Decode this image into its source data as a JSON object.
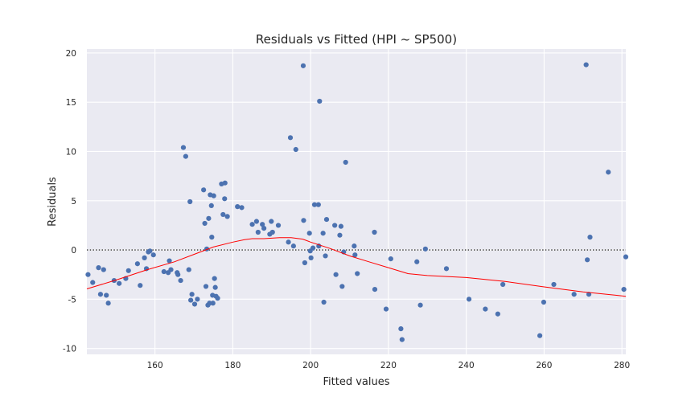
{
  "chart_data": {
    "type": "scatter",
    "title": "Residuals vs Fitted (HPI ~ SP500)",
    "xlabel": "Fitted values",
    "ylabel": "Residuals",
    "xlim": [
      142.5,
      281
    ],
    "ylim": [
      -10.6,
      20.4
    ],
    "x_ticks": [
      160,
      180,
      200,
      220,
      240,
      260,
      280
    ],
    "y_ticks": [
      -10,
      -5,
      0,
      5,
      10,
      15,
      20
    ],
    "grid": true,
    "background": "#eaeaf2",
    "point_color": "#4c72b0",
    "lowess_color": "#ff0000",
    "zero_line_color": "#333333",
    "points": [
      [
        142.8,
        -2.5
      ],
      [
        144,
        -3.3
      ],
      [
        145.5,
        -1.8
      ],
      [
        146,
        -4.5
      ],
      [
        146.8,
        -2
      ],
      [
        147.5,
        -4.6
      ],
      [
        148,
        -5.4
      ],
      [
        149.5,
        -3.1
      ],
      [
        150.8,
        -3.4
      ],
      [
        152.5,
        -2.9
      ],
      [
        153.2,
        -2.1
      ],
      [
        155.5,
        -1.4
      ],
      [
        156.2,
        -3.6
      ],
      [
        157.3,
        -0.8
      ],
      [
        157.8,
        -1.9
      ],
      [
        158.3,
        -0.2
      ],
      [
        158.7,
        -0.1
      ],
      [
        159.6,
        -0.5
      ],
      [
        162.3,
        -2.2
      ],
      [
        163.4,
        -2.3
      ],
      [
        163.7,
        -1.1
      ],
      [
        164.1,
        -2
      ],
      [
        165.7,
        -2.3
      ],
      [
        165.9,
        -2.5
      ],
      [
        166.6,
        -3.1
      ],
      [
        167.3,
        10.4
      ],
      [
        167.9,
        9.5
      ],
      [
        168.7,
        -2
      ],
      [
        169,
        4.9
      ],
      [
        169.2,
        -5.1
      ],
      [
        169.5,
        -4.5
      ],
      [
        170.2,
        -5.5
      ],
      [
        170.9,
        -5
      ],
      [
        172.5,
        6.1
      ],
      [
        172.8,
        2.7
      ],
      [
        173.1,
        -3.7
      ],
      [
        173.3,
        0.1
      ],
      [
        173.6,
        -5.6
      ],
      [
        173.8,
        3.2
      ],
      [
        174,
        -5.4
      ],
      [
        174.2,
        5.6
      ],
      [
        174.5,
        4.5
      ],
      [
        174.6,
        1.3
      ],
      [
        174.8,
        -4.6
      ],
      [
        174.9,
        -5.4
      ],
      [
        175.1,
        5.5
      ],
      [
        175.3,
        -2.9
      ],
      [
        175.5,
        -3.8
      ],
      [
        175.7,
        -4.7
      ],
      [
        176.1,
        -4.9
      ],
      [
        177.1,
        6.7
      ],
      [
        177.5,
        3.6
      ],
      [
        177.9,
        5.2
      ],
      [
        178,
        6.8
      ],
      [
        178.6,
        3.4
      ],
      [
        181.2,
        4.4
      ],
      [
        182.3,
        4.3
      ],
      [
        185,
        2.6
      ],
      [
        186.1,
        2.9
      ],
      [
        186.5,
        1.8
      ],
      [
        187.6,
        2.6
      ],
      [
        188,
        2.2
      ],
      [
        189.5,
        1.6
      ],
      [
        189.9,
        2.9
      ],
      [
        190.2,
        1.8
      ],
      [
        191.7,
        2.5
      ],
      [
        194.3,
        0.8
      ],
      [
        194.8,
        11.4
      ],
      [
        195.6,
        0.4
      ],
      [
        196.2,
        10.2
      ],
      [
        198.1,
        18.7
      ],
      [
        198.2,
        3
      ],
      [
        198.5,
        -1.3
      ],
      [
        199.7,
        1.7
      ],
      [
        199.9,
        -0.1
      ],
      [
        200.1,
        -0.8
      ],
      [
        200.6,
        0.2
      ],
      [
        201,
        4.6
      ],
      [
        202,
        4.6
      ],
      [
        202.1,
        0.4
      ],
      [
        202.3,
        15.1
      ],
      [
        203.2,
        1.7
      ],
      [
        203.4,
        -5.3
      ],
      [
        203.8,
        -0.6
      ],
      [
        204.1,
        3.1
      ],
      [
        206.2,
        2.5
      ],
      [
        206.5,
        -2.5
      ],
      [
        207.5,
        1.5
      ],
      [
        207.8,
        2.4
      ],
      [
        208.1,
        -3.7
      ],
      [
        208.5,
        -0.2
      ],
      [
        209,
        8.9
      ],
      [
        211.2,
        0.4
      ],
      [
        211.4,
        -0.5
      ],
      [
        212,
        -2.4
      ],
      [
        216.4,
        1.8
      ],
      [
        216.5,
        -4
      ],
      [
        219.4,
        -6
      ],
      [
        220.6,
        -0.9
      ],
      [
        223.2,
        -8
      ],
      [
        223.5,
        -9.1
      ],
      [
        227.3,
        -1.2
      ],
      [
        228.2,
        -5.6
      ],
      [
        229.5,
        0.1
      ],
      [
        234.9,
        -1.9
      ],
      [
        240.7,
        -5
      ],
      [
        244.9,
        -6
      ],
      [
        248.1,
        -6.5
      ],
      [
        249.4,
        -3.5
      ],
      [
        258.9,
        -8.7
      ],
      [
        259.9,
        -5.3
      ],
      [
        262.5,
        -3.5
      ],
      [
        267.7,
        -4.5
      ],
      [
        270.8,
        18.8
      ],
      [
        271.1,
        -1
      ],
      [
        271.5,
        -4.5
      ],
      [
        271.8,
        1.3
      ],
      [
        276.5,
        7.9
      ],
      [
        281,
        -0.7
      ],
      [
        280.5,
        -4
      ]
    ],
    "lowess": [
      [
        142.5,
        -3.95
      ],
      [
        150,
        -3.05
      ],
      [
        158,
        -2
      ],
      [
        165,
        -1.2
      ],
      [
        170,
        -0.45
      ],
      [
        175,
        0.3
      ],
      [
        180,
        0.8
      ],
      [
        183,
        1.05
      ],
      [
        185,
        1.15
      ],
      [
        188,
        1.15
      ],
      [
        190,
        1.2
      ],
      [
        192,
        1.25
      ],
      [
        195,
        1.25
      ],
      [
        198,
        1.1
      ],
      [
        200,
        0.8
      ],
      [
        205,
        0.15
      ],
      [
        210,
        -0.6
      ],
      [
        215,
        -1.2
      ],
      [
        220,
        -1.8
      ],
      [
        225,
        -2.4
      ],
      [
        230,
        -2.6
      ],
      [
        240,
        -2.8
      ],
      [
        250,
        -3.2
      ],
      [
        260,
        -3.75
      ],
      [
        270,
        -4.25
      ],
      [
        281,
        -4.7
      ]
    ]
  }
}
